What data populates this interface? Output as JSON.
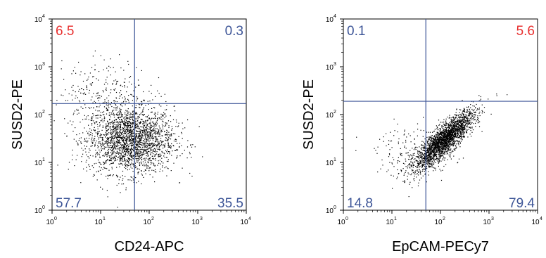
{
  "chart_data": [
    {
      "type": "scatter",
      "xlabel": "CD24-APC",
      "ylabel": "SUSD2-PE",
      "x_scale": "log",
      "y_scale": "log",
      "xlim": [
        1,
        10000
      ],
      "ylim": [
        1,
        10000
      ],
      "tick_base": "10",
      "tick_exponents": [
        "0",
        "1",
        "2",
        "3",
        "4"
      ],
      "gate": {
        "x": 50,
        "y": 170
      },
      "quadrants": [
        {
          "position": "top-left",
          "value": "6.5",
          "color": "#e8302f"
        },
        {
          "position": "top-right",
          "value": "0.3",
          "color": "#3d5597"
        },
        {
          "position": "bottom-left",
          "value": "57.7",
          "color": "#3d5597"
        },
        {
          "position": "bottom-right",
          "value": "35.5",
          "color": "#3d5597"
        }
      ],
      "population": {
        "points": 2600,
        "core": {
          "x_center": 40,
          "y_center": 30,
          "log_sd_x": 0.45,
          "log_sd_y": 0.35,
          "fraction": 0.9
        },
        "upper": {
          "x_center": 12,
          "y_center": 300,
          "log_sd_x": 0.45,
          "log_sd_y": 0.35,
          "fraction": 0.1
        }
      }
    },
    {
      "type": "scatter",
      "xlabel": "EpCAM-PECy7",
      "ylabel": "SUSD2-PE",
      "x_scale": "log",
      "y_scale": "log",
      "xlim": [
        1,
        10000
      ],
      "ylim": [
        1,
        10000
      ],
      "tick_base": "10",
      "tick_exponents": [
        "0",
        "1",
        "2",
        "3",
        "4"
      ],
      "gate": {
        "x": 50,
        "y": 190
      },
      "quadrants": [
        {
          "position": "top-left",
          "value": "0.1",
          "color": "#3d5597"
        },
        {
          "position": "top-right",
          "value": "5.6",
          "color": "#e8302f"
        },
        {
          "position": "bottom-left",
          "value": "14.8",
          "color": "#3d5597"
        },
        {
          "position": "bottom-right",
          "value": "79.4",
          "color": "#3d5597"
        }
      ],
      "population": {
        "points": 2600,
        "core": {
          "x_center": 120,
          "y_center": 30,
          "log_sd_x": 0.3,
          "log_sd_y": 0.3,
          "correlation": 0.85,
          "fraction": 0.92
        },
        "sparse": {
          "x_center": 30,
          "y_center": 15,
          "log_sd_x": 0.4,
          "log_sd_y": 0.3,
          "fraction": 0.08
        }
      }
    }
  ]
}
